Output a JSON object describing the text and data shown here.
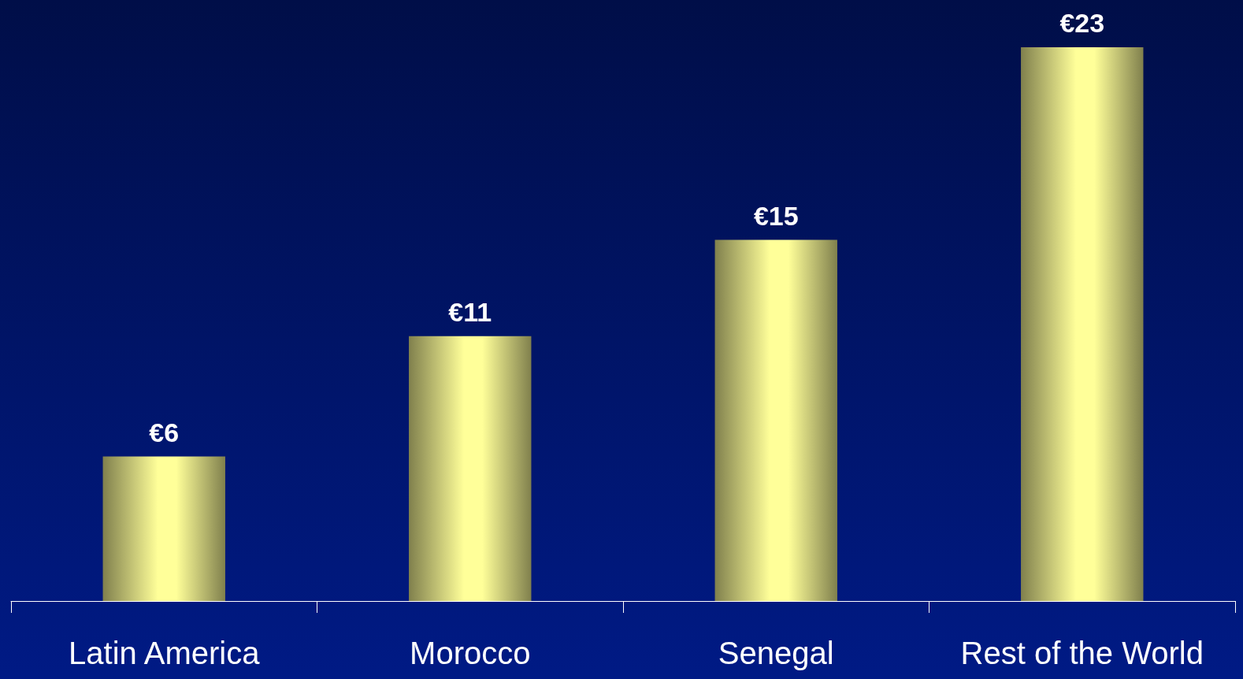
{
  "chart_data": {
    "type": "bar",
    "categories": [
      "Latin America",
      "Morocco",
      "Senegal",
      "Rest of the World"
    ],
    "values": [
      6,
      11,
      15,
      23
    ],
    "value_labels": [
      "€6",
      "€11",
      "€15",
      "€23"
    ],
    "color": "#ffff99",
    "grid": false
  }
}
